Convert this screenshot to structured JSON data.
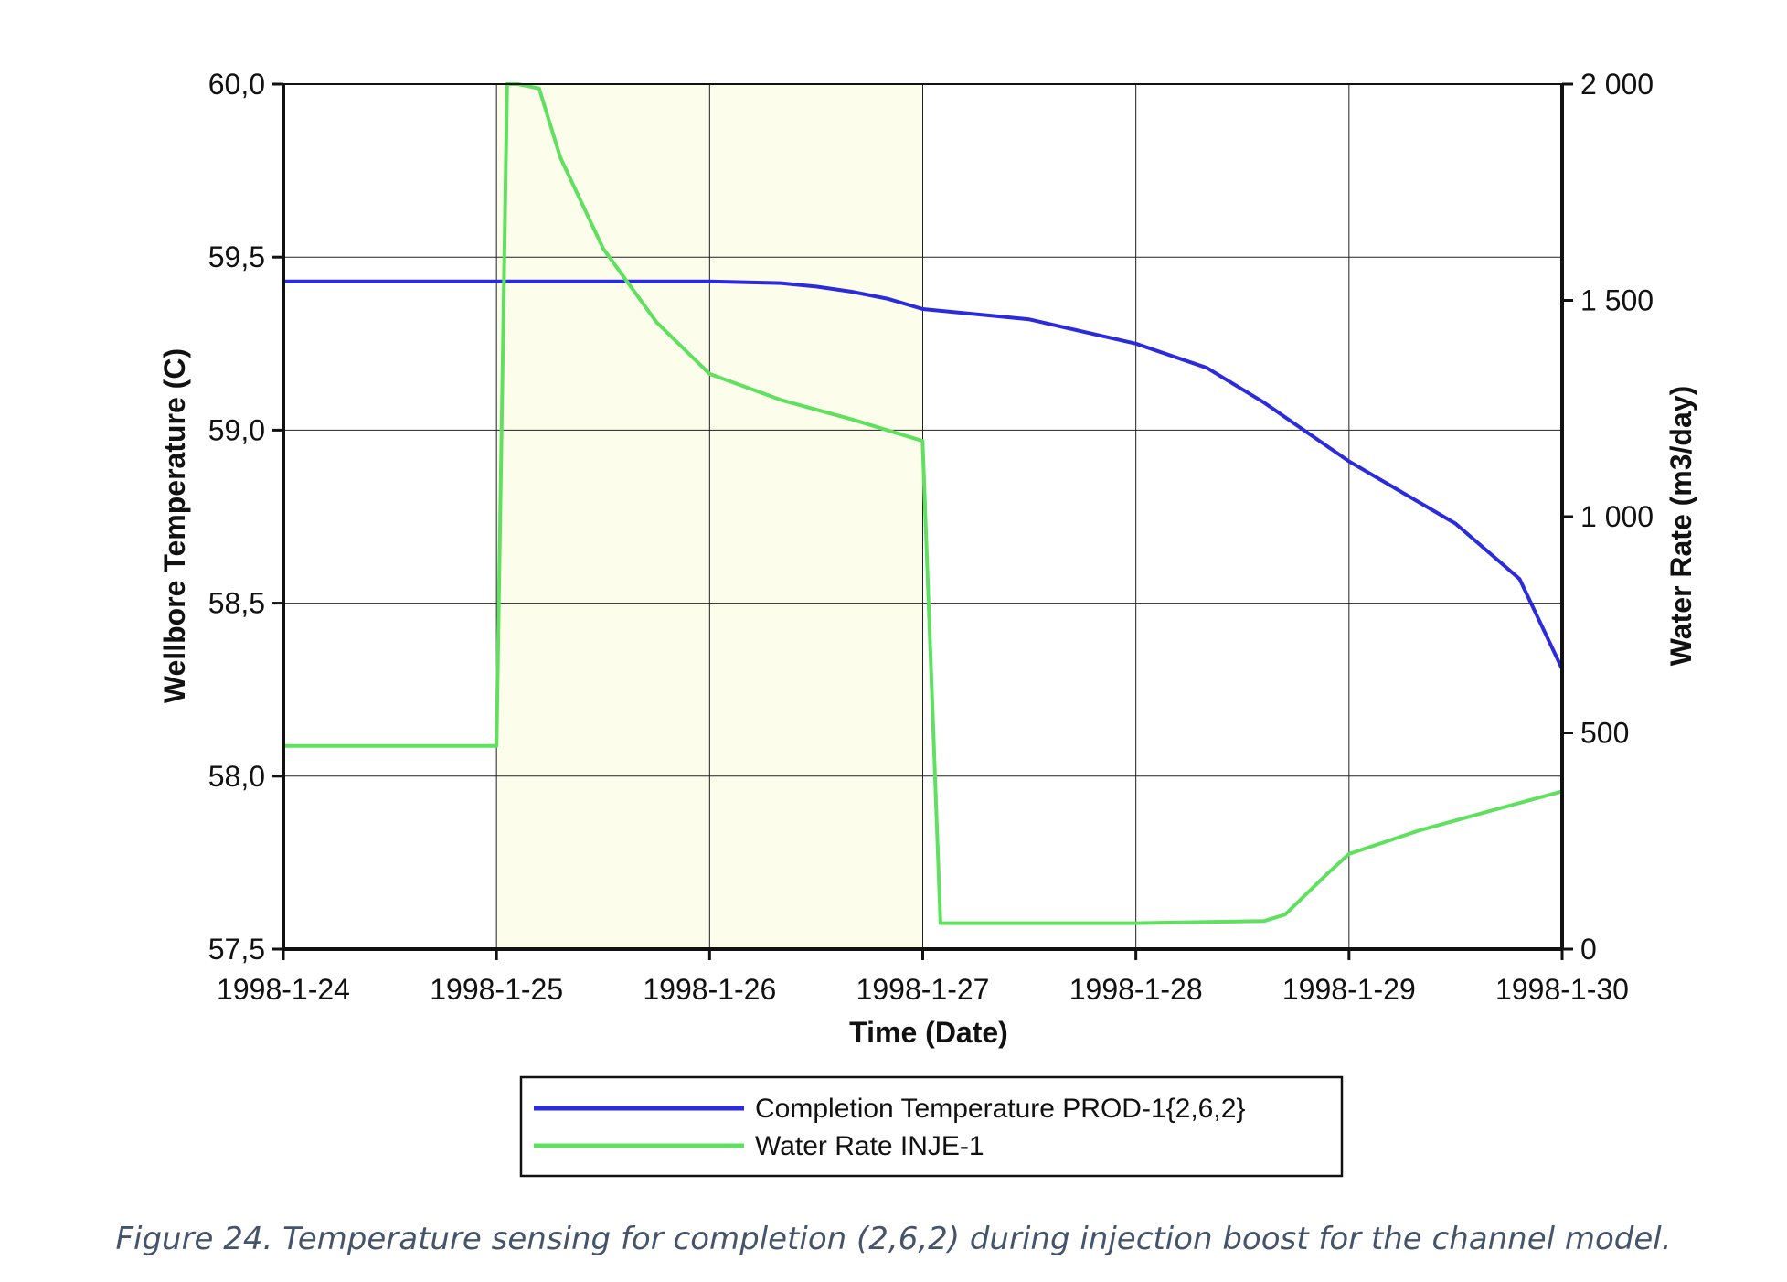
{
  "chart_data": {
    "type": "line",
    "x_ticks": [
      "1998-1-24",
      "1998-1-25",
      "1998-1-26",
      "1998-1-27",
      "1998-1-28",
      "1998-1-29",
      "1998-1-30"
    ],
    "xlabel": "Time (Date)",
    "ylabel": "Wellbore Temperature (C)",
    "y2label": "Water Rate (m3/day)",
    "ylim": [
      57.5,
      60.0
    ],
    "y2lim": [
      0,
      2000
    ],
    "y_ticks": [
      "57,5",
      "58,0",
      "58,5",
      "59,0",
      "59,5",
      "60,0"
    ],
    "y2_ticks": [
      "0",
      "500",
      "1 000",
      "1 500",
      "2 000"
    ],
    "grid": true,
    "legend_position": "bottom",
    "shaded_region": {
      "x_start": "1998-1-25",
      "x_end": "1998-1-27",
      "color": "#fdfdec"
    },
    "series": [
      {
        "name": "Completion Temperature PROD-1{2,6,2}",
        "axis": "left",
        "color": "#2b2bdd",
        "x": [
          "1998-1-24",
          "1998-1-25",
          "1998-1-25 12:00",
          "1998-1-26",
          "1998-1-26 08:00",
          "1998-1-26 12:00",
          "1998-1-26 16:00",
          "1998-1-26 20:00",
          "1998-1-27",
          "1998-1-27 12:00",
          "1998-1-28",
          "1998-1-28 08:00",
          "1998-1-28 14:24",
          "1998-1-29",
          "1998-1-29 12:00",
          "1998-1-29 19:12",
          "1998-1-30"
        ],
        "values": [
          59.43,
          59.43,
          59.43,
          59.43,
          59.425,
          59.415,
          59.4,
          59.38,
          59.35,
          59.32,
          59.25,
          59.18,
          59.08,
          58.91,
          58.73,
          58.57,
          58.31
        ]
      },
      {
        "name": "Water Rate INJE-1",
        "axis": "right",
        "color": "#5fe05f",
        "x": [
          "1998-1-24",
          "1998-1-25",
          "1998-1-25 01:12",
          "1998-1-25 02:24",
          "1998-1-25 04:48",
          "1998-1-25 07:12",
          "1998-1-25 12:00",
          "1998-1-25 18:00",
          "1998-1-26",
          "1998-1-26 08:00",
          "1998-1-26 16:00",
          "1998-1-26 23:59",
          "1998-1-27 02:00",
          "1998-1-27 12:00",
          "1998-1-28",
          "1998-1-28 14:24",
          "1998-1-28 16:48",
          "1998-1-28 21:36",
          "1998-1-29",
          "1998-1-29 08:00",
          "1998-1-29 16:00",
          "1998-1-30"
        ],
        "values": [
          470,
          470,
          2000,
          2000,
          1990,
          1830,
          1620,
          1450,
          1330,
          1270,
          1225,
          1175,
          60,
          60,
          60,
          65,
          80,
          175,
          220,
          275,
          320,
          365
        ]
      }
    ]
  },
  "legend": {
    "items": [
      {
        "label": "Completion Temperature PROD-1{2,6,2}",
        "color": "#2b2bdd"
      },
      {
        "label": "Water Rate INJE-1",
        "color": "#5fe05f"
      }
    ]
  },
  "caption": "Figure 24. Temperature sensing for completion (2,6,2) during injection boost for the channel model."
}
